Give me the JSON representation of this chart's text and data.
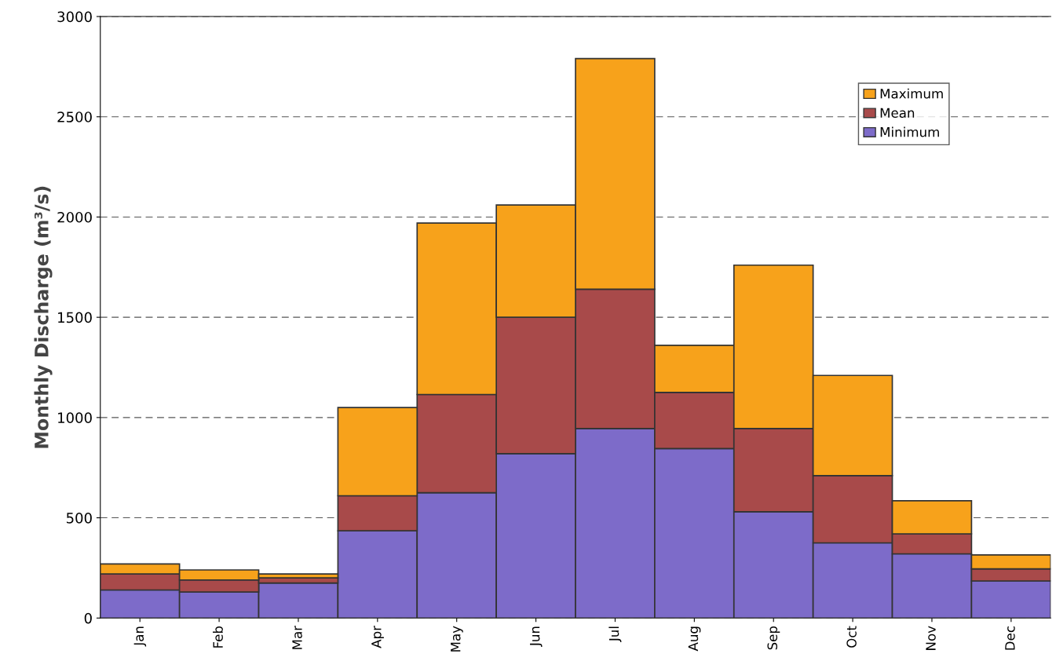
{
  "chart_data": {
    "type": "bar",
    "stacked": true,
    "ylabel": "Monthly Discharge (m³/s)",
    "categories": [
      "Jan",
      "Feb",
      "Mar",
      "Apr",
      "May",
      "Jun",
      "Jul",
      "Aug",
      "Sep",
      "Oct",
      "Nov",
      "Dec"
    ],
    "series": [
      {
        "name": "Minimum",
        "color": "#7d6bc9",
        "values": [
          140,
          130,
          175,
          435,
          625,
          820,
          945,
          845,
          530,
          375,
          320,
          185
        ]
      },
      {
        "name": "Mean",
        "color": "#a84a4a",
        "values": [
          80,
          60,
          25,
          175,
          490,
          680,
          695,
          280,
          415,
          335,
          100,
          60
        ]
      },
      {
        "name": "Maximum",
        "color": "#f7a21b",
        "values": [
          50,
          50,
          20,
          440,
          855,
          560,
          1150,
          235,
          815,
          500,
          165,
          70
        ]
      }
    ],
    "ylim": [
      0,
      3000
    ],
    "yticks": [
      0,
      500,
      1000,
      1500,
      2000,
      2500,
      3000
    ],
    "grid": "y",
    "legend": "top right"
  }
}
